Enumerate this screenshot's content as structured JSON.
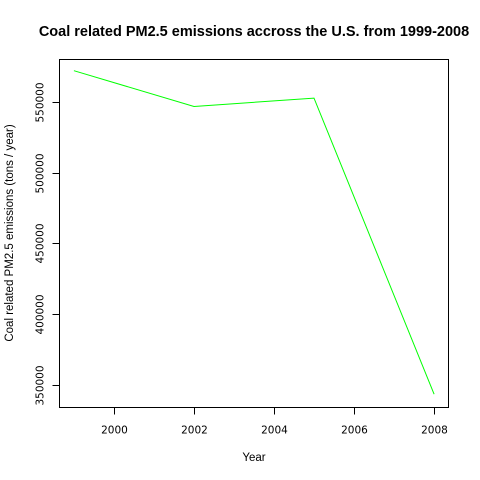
{
  "chart_data": {
    "type": "line",
    "title": "Coal related PM2.5 emissions accross the U.S. from 1999-2008",
    "xlabel": "Year",
    "ylabel": "Coal related PM2.5 emissions (tons / year)",
    "x": [
      1999,
      2002,
      2005,
      2008
    ],
    "series": [
      {
        "values": [
          572100,
          546800,
          552700,
          343400
        ],
        "color": "#00ff00"
      }
    ],
    "xlim": [
      1998.64,
      2008.36
    ],
    "ylim": [
      334000,
      580000
    ],
    "xticks": [
      2000,
      2002,
      2004,
      2006,
      2008
    ],
    "xtick_labels": [
      "2000",
      "2002",
      "2004",
      "2006",
      "2008"
    ],
    "yticks": [
      350000,
      400000,
      450000,
      500000,
      550000
    ],
    "ytick_labels": [
      "350000",
      "400000",
      "450000",
      "500000",
      "550000"
    ],
    "grid": false,
    "legend": "none"
  }
}
